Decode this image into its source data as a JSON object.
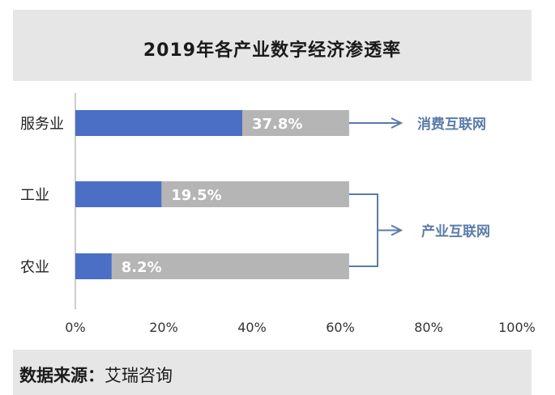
{
  "chart_data": {
    "type": "bar",
    "orientation": "horizontal",
    "title": "2019年各产业数字经济渗透率",
    "categories": [
      "服务业",
      "工业",
      "农业"
    ],
    "values": [
      37.8,
      19.5,
      8.2
    ],
    "value_labels": [
      "37.8%",
      "19.5%",
      "8.2%"
    ],
    "background_values": [
      62,
      62,
      62
    ],
    "xlim": [
      0,
      100
    ],
    "x_ticks": [
      "0%",
      "20%",
      "40%",
      "60%",
      "80%",
      "100%"
    ],
    "grid": false,
    "annotations": [
      {
        "text": "消费互联网",
        "targets": [
          "服务业"
        ]
      },
      {
        "text": "产业互联网",
        "targets": [
          "工业",
          "农业"
        ]
      }
    ],
    "colors": {
      "value": "#4a6fc4",
      "background": "#b5b5b5",
      "annotation": "#5a7baa",
      "value_label": "#ffffff"
    }
  },
  "footer": {
    "source_label": "数据来源：",
    "source_value": "艾瑞咨询"
  }
}
